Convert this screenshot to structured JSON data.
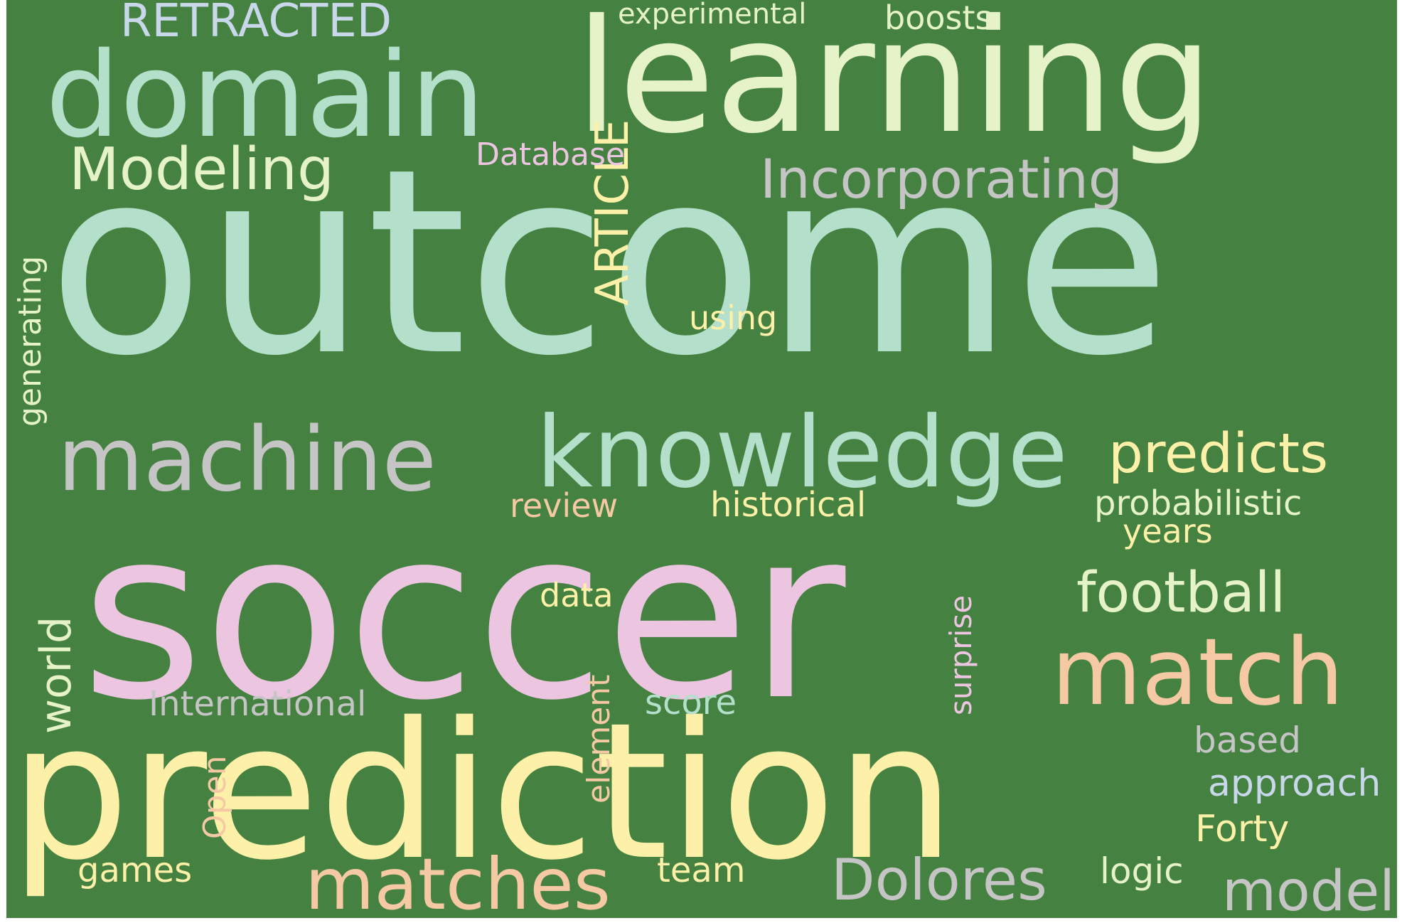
{
  "background_color": "#458140",
  "palette": [
    "#b3dfcb",
    "#e6f3c9",
    "#fdf0a9",
    "#ecc5e0",
    "#c5c5c5",
    "#f6c9a5",
    "#c8d8ea"
  ],
  "words": [
    {
      "key": "outcome",
      "text": "outcome",
      "color": "#b3dfcb",
      "vertical": false
    },
    {
      "key": "soccer",
      "text": "soccer",
      "color": "#ecc5e0",
      "vertical": false
    },
    {
      "key": "prediction",
      "text": "prediction",
      "color": "#fdf0a9",
      "vertical": false
    },
    {
      "key": "learning",
      "text": "learning",
      "color": "#e6f3c9",
      "vertical": false
    },
    {
      "key": "domain",
      "text": "domain",
      "color": "#b3dfcb",
      "vertical": false
    },
    {
      "key": "knowledge",
      "text": "knowledge",
      "color": "#b3dfcb",
      "vertical": false
    },
    {
      "key": "machine",
      "text": "machine",
      "color": "#c5c5c5",
      "vertical": false
    },
    {
      "key": "match",
      "text": "match",
      "color": "#f6c9a5",
      "vertical": false
    },
    {
      "key": "matches",
      "text": "matches",
      "color": "#f6c9a5",
      "vertical": false
    },
    {
      "key": "modeling",
      "text": "Modeling",
      "color": "#e6f3c9",
      "vertical": false
    },
    {
      "key": "incorporating",
      "text": "Incorporating",
      "color": "#c5c5c5",
      "vertical": false
    },
    {
      "key": "predicts",
      "text": "predicts",
      "color": "#fdf0a9",
      "vertical": false
    },
    {
      "key": "football",
      "text": "football",
      "color": "#e6f3c9",
      "vertical": false
    },
    {
      "key": "dolores",
      "text": "Dolores",
      "color": "#c5c5c5",
      "vertical": false
    },
    {
      "key": "model",
      "text": "model",
      "color": "#c5c5c5",
      "vertical": false
    },
    {
      "key": "retracted",
      "text": "RETRACTED",
      "color": "#c8d8ea",
      "vertical": false
    },
    {
      "key": "article",
      "text": "ARTICLE",
      "color": "#fdf0a9",
      "vertical": true
    },
    {
      "key": "world",
      "text": "world",
      "color": "#e6f3c9",
      "vertical": true
    },
    {
      "key": "experimental",
      "text": "experimental",
      "color": "#e6f3c9",
      "vertical": false
    },
    {
      "key": "boosts",
      "text": "boosts",
      "color": "#e6f3c9",
      "vertical": false
    },
    {
      "key": "database",
      "text": "Database",
      "color": "#ecc5e0",
      "vertical": false
    },
    {
      "key": "using",
      "text": "using",
      "color": "#fdf0a9",
      "vertical": false
    },
    {
      "key": "generating",
      "text": "generating",
      "color": "#e6f3c9",
      "vertical": true
    },
    {
      "key": "review",
      "text": "review",
      "color": "#f6c9a5",
      "vertical": false
    },
    {
      "key": "historical",
      "text": "historical",
      "color": "#fdf0a9",
      "vertical": false
    },
    {
      "key": "probabilistic",
      "text": "probabilistic",
      "color": "#e6f3c9",
      "vertical": false
    },
    {
      "key": "years",
      "text": "years",
      "color": "#fdf0a9",
      "vertical": false
    },
    {
      "key": "surprise",
      "text": "surprise",
      "color": "#ecc5e0",
      "vertical": true
    },
    {
      "key": "data",
      "text": "data",
      "color": "#fdf0a9",
      "vertical": false
    },
    {
      "key": "international",
      "text": "International",
      "color": "#c5c5c5",
      "vertical": false
    },
    {
      "key": "element",
      "text": "element",
      "color": "#f6c9a5",
      "vertical": true
    },
    {
      "key": "score",
      "text": "score",
      "color": "#b3dfcb",
      "vertical": false
    },
    {
      "key": "based",
      "text": "based",
      "color": "#c5c5c5",
      "vertical": false
    },
    {
      "key": "approach",
      "text": "approach",
      "color": "#c8d8ea",
      "vertical": false
    },
    {
      "key": "open",
      "text": "Open",
      "color": "#f6c9a5",
      "vertical": true
    },
    {
      "key": "forty",
      "text": "Forty",
      "color": "#fdf0a9",
      "vertical": false
    },
    {
      "key": "games",
      "text": "games",
      "color": "#fdf0a9",
      "vertical": false
    },
    {
      "key": "team",
      "text": "team",
      "color": "#fdf0a9",
      "vertical": false
    },
    {
      "key": "logic",
      "text": "logic",
      "color": "#e6f3c9",
      "vertical": false
    }
  ]
}
